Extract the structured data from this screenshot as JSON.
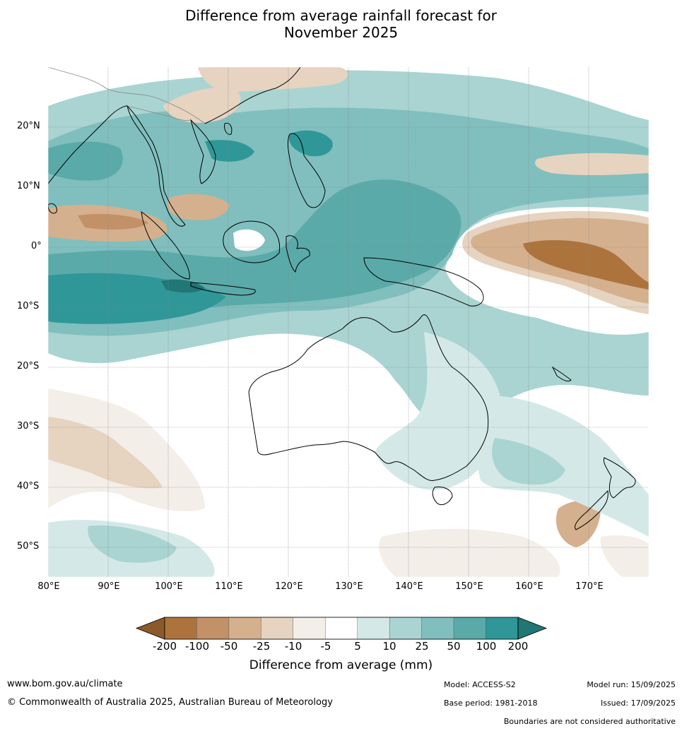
{
  "title_line1": "Difference from average rainfall forecast for",
  "title_line2": "November 2025",
  "lat_labels": [
    "20°N",
    "10°N",
    "0°",
    "10°S",
    "20°S",
    "30°S",
    "40°S",
    "50°S"
  ],
  "lon_labels": [
    "80°E",
    "90°E",
    "100°E",
    "110°E",
    "120°E",
    "130°E",
    "140°E",
    "150°E",
    "160°E",
    "170°E"
  ],
  "colorbar": {
    "ticks": [
      "-200",
      "-100",
      "-50",
      "-25",
      "-10",
      "-5",
      "5",
      "10",
      "25",
      "50",
      "100",
      "200"
    ],
    "colors": [
      "#8c5a2a",
      "#ac743c",
      "#c39168",
      "#d4b08e",
      "#e6d3c0",
      "#f3eee8",
      "#ffffff",
      "#d4e9e7",
      "#a9d4d2",
      "#80bfbe",
      "#5aaaa9",
      "#2f9797",
      "#217676"
    ],
    "title": "Difference from average (mm)"
  },
  "footer": {
    "website": "www.bom.gov.au/climate",
    "copyright": "© Commonwealth of Australia 2025, Australian Bureau of Meteorology",
    "model": "Model: ACCESS-S2",
    "base_period": "Base period: 1981-2018",
    "model_run": "Model run: 15/09/2025",
    "issued": "Issued: 17/09/2025",
    "disclaimer": "Boundaries are not considered authoritative"
  }
}
